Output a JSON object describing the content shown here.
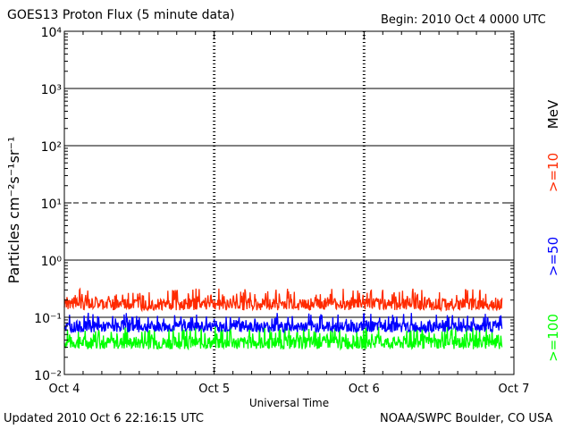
{
  "header": {
    "title": "GOES13 Proton Flux (5 minute data)",
    "begin": "Begin: 2010 Oct 4 0000 UTC"
  },
  "footer": {
    "updated": "Updated 2010 Oct  6 22:16:15 UTC",
    "credit": "NOAA/SWPC Boulder, CO USA"
  },
  "chart_data": {
    "type": "line",
    "xlabel": "Universal Time",
    "ylabel": "Particles cm⁻²s⁻¹sr⁻¹",
    "yscale": "log",
    "ylim": [
      0.01,
      10000
    ],
    "xlim_days": [
      0,
      3
    ],
    "x_ticks": [
      "Oct 4",
      "Oct 5",
      "Oct 6",
      "Oct 7"
    ],
    "y_ticks": [
      "10⁻²",
      "10⁻¹",
      "10⁰",
      "10¹",
      "10²",
      "10³",
      "10⁴"
    ],
    "units_label": "MeV",
    "series": [
      {
        "name": ">=10",
        "color": "#ff2a00",
        "x": [
          0.0,
          2.92
        ],
        "y": [
          0.2,
          0.2
        ],
        "noise_range": [
          0.12,
          0.32
        ]
      },
      {
        "name": ">=50",
        "color": "#0000ff",
        "x": [
          0.0,
          2.92
        ],
        "y": [
          0.075,
          0.075
        ],
        "noise_range": [
          0.05,
          0.12
        ]
      },
      {
        "name": ">=100",
        "color": "#00ff00",
        "x": [
          0.0,
          2.92
        ],
        "y": [
          0.035,
          0.035
        ],
        "noise_range": [
          0.025,
          0.07
        ]
      }
    ]
  }
}
